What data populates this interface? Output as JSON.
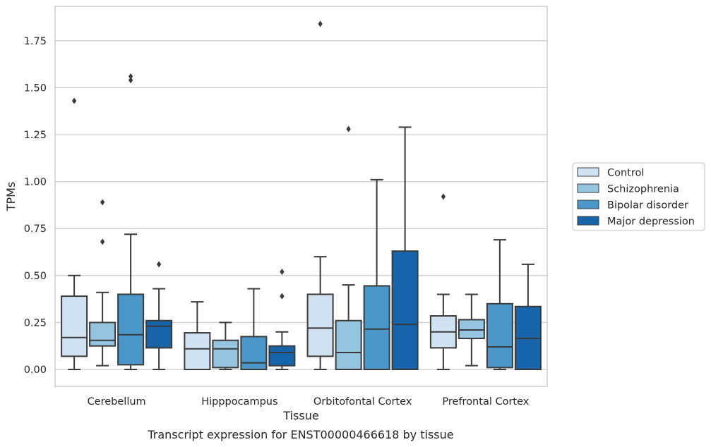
{
  "caption": "Transcript expression for ENST00000466618 by tissue",
  "chart_data": {
    "type": "box",
    "xlabel": "Tissue",
    "ylabel": "TPMs",
    "ylim": [
      -0.09,
      1.94
    ],
    "yticks": [
      "0.00",
      "0.25",
      "0.50",
      "0.75",
      "1.00",
      "1.25",
      "1.50",
      "1.75"
    ],
    "ytick_values": [
      0,
      0.25,
      0.5,
      0.75,
      1.0,
      1.25,
      1.5,
      1.75
    ],
    "grid": "horizontal",
    "legend_position": "right",
    "categories": [
      "Cerebellum",
      "Hipppocampus",
      "Orbitofontal Cortex",
      "Prefrontal Cortex"
    ],
    "series": [
      {
        "name": "Control",
        "color": "#d0e1f2",
        "boxes": [
          {
            "whisker_low": 0.0,
            "q1": 0.07,
            "median": 0.17,
            "q3": 0.39,
            "whisker_high": 0.5,
            "outliers": [
              1.43
            ]
          },
          {
            "whisker_low": 0.0,
            "q1": 0.0,
            "median": 0.11,
            "q3": 0.195,
            "whisker_high": 0.36,
            "outliers": []
          },
          {
            "whisker_low": 0.0,
            "q1": 0.07,
            "median": 0.22,
            "q3": 0.4,
            "whisker_high": 0.6,
            "outliers": [
              1.84
            ]
          },
          {
            "whisker_low": 0.0,
            "q1": 0.115,
            "median": 0.2,
            "q3": 0.285,
            "whisker_high": 0.4,
            "outliers": [
              0.92
            ]
          }
        ]
      },
      {
        "name": "Schizophrenia",
        "color": "#94c4df",
        "boxes": [
          {
            "whisker_low": 0.02,
            "q1": 0.125,
            "median": 0.155,
            "q3": 0.25,
            "whisker_high": 0.41,
            "outliers": [
              0.68,
              0.89
            ]
          },
          {
            "whisker_low": 0.0,
            "q1": 0.01,
            "median": 0.11,
            "q3": 0.155,
            "whisker_high": 0.25,
            "outliers": []
          },
          {
            "whisker_low": 0.0,
            "q1": 0.0,
            "median": 0.09,
            "q3": 0.26,
            "whisker_high": 0.45,
            "outliers": [
              1.28
            ]
          },
          {
            "whisker_low": 0.02,
            "q1": 0.165,
            "median": 0.21,
            "q3": 0.265,
            "whisker_high": 0.4,
            "outliers": []
          }
        ]
      },
      {
        "name": "Bipolar disorder",
        "color": "#4a98c9",
        "boxes": [
          {
            "whisker_low": 0.0,
            "q1": 0.025,
            "median": 0.185,
            "q3": 0.4,
            "whisker_high": 0.72,
            "outliers": [
              1.54,
              1.56
            ]
          },
          {
            "whisker_low": 0.0,
            "q1": 0.0,
            "median": 0.035,
            "q3": 0.175,
            "whisker_high": 0.43,
            "outliers": []
          },
          {
            "whisker_low": 0.0,
            "q1": 0.0,
            "median": 0.215,
            "q3": 0.445,
            "whisker_high": 1.01,
            "outliers": []
          },
          {
            "whisker_low": 0.0,
            "q1": 0.01,
            "median": 0.12,
            "q3": 0.35,
            "whisker_high": 0.69,
            "outliers": []
          }
        ]
      },
      {
        "name": "Major depression",
        "color": "#1764ab",
        "boxes": [
          {
            "whisker_low": 0.0,
            "q1": 0.115,
            "median": 0.23,
            "q3": 0.26,
            "whisker_high": 0.43,
            "outliers": [
              0.56
            ]
          },
          {
            "whisker_low": 0.0,
            "q1": 0.02,
            "median": 0.09,
            "q3": 0.125,
            "whisker_high": 0.2,
            "outliers": [
              0.39,
              0.52
            ]
          },
          {
            "whisker_low": 0.0,
            "q1": 0.0,
            "median": 0.24,
            "q3": 0.63,
            "whisker_high": 1.29,
            "outliers": []
          },
          {
            "whisker_low": 0.0,
            "q1": 0.0,
            "median": 0.165,
            "q3": 0.335,
            "whisker_high": 0.56,
            "outliers": []
          }
        ]
      }
    ]
  }
}
